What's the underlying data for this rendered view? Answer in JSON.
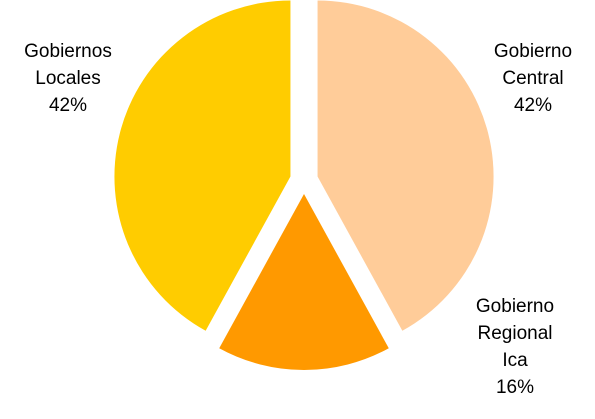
{
  "chart_data": {
    "type": "pie",
    "title": "",
    "slices": [
      {
        "label_lines": [
          "Gobierno",
          "Central"
        ],
        "percent_label": "42%",
        "value": 42,
        "color": "#FFCC99"
      },
      {
        "label_lines": [
          "Gobierno",
          "Regional",
          "Ica"
        ],
        "percent_label": "16%",
        "value": 16,
        "color": "#FF9900"
      },
      {
        "label_lines": [
          "Gobiernos",
          "Locales"
        ],
        "percent_label": "42%",
        "value": 42,
        "color": "#FFCC00"
      }
    ],
    "start_position": "12 o'clock",
    "direction": "clockwise",
    "exploded": true,
    "legend": "none"
  }
}
